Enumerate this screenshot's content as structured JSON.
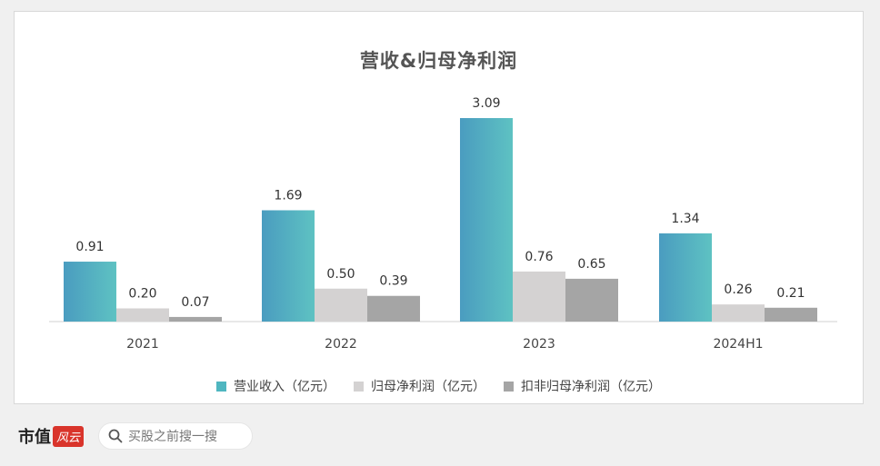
{
  "chart_data": {
    "type": "bar",
    "title": "营收&归母净利润",
    "categories": [
      "2021",
      "2022",
      "2023",
      "2024H1"
    ],
    "series": [
      {
        "name": "营业收入（亿元）",
        "values": [
          0.91,
          1.69,
          3.09,
          1.34
        ],
        "color": "#4fb6c0"
      },
      {
        "name": "归母净利润（亿元）",
        "values": [
          0.2,
          0.5,
          0.76,
          0.26
        ],
        "color": "#d4d2d2"
      },
      {
        "name": "扣非归母净利润（亿元）",
        "values": [
          0.07,
          0.39,
          0.65,
          0.21
        ],
        "color": "#a5a5a5"
      }
    ],
    "value_labels": [
      [
        "0.91",
        "1.69",
        "3.09",
        "1.34"
      ],
      [
        "0.20",
        "0.50",
        "0.76",
        "0.26"
      ],
      [
        "0.07",
        "0.39",
        "0.65",
        "0.21"
      ]
    ],
    "ylim": [
      0,
      3.09
    ],
    "grid": false,
    "legend_position": "bottom"
  },
  "footer": {
    "brand": "市值",
    "brand_mark": "风云",
    "search_text": "买股之前搜一搜",
    "search_icon": "search-icon"
  }
}
